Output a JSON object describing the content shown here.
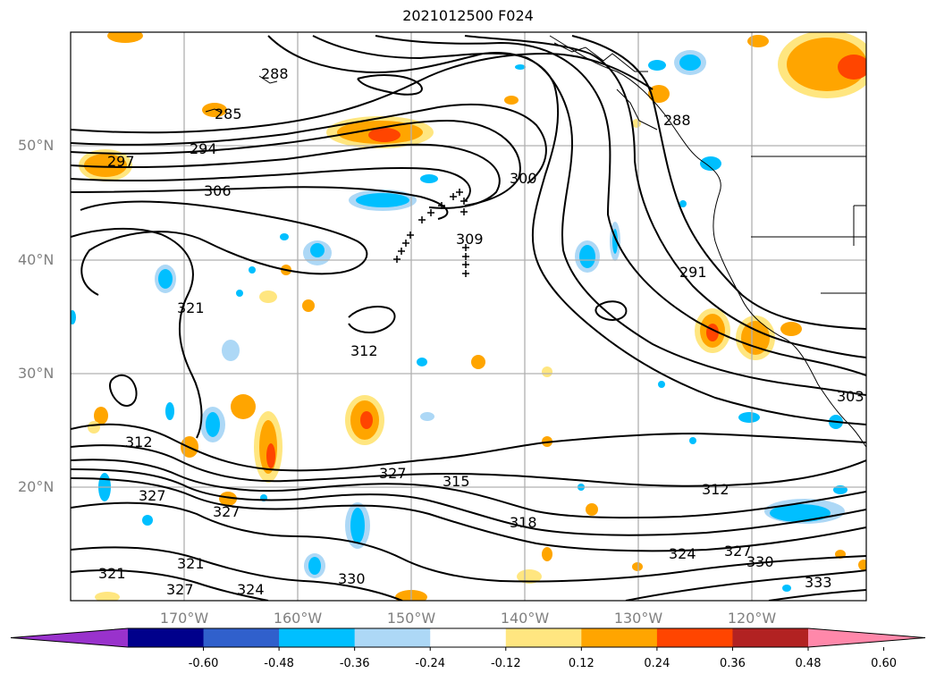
{
  "title": "2021012500 F024",
  "lat_labels": [
    "50°N",
    "40°N",
    "30°N",
    "20°N"
  ],
  "lon_labels": [
    "170°W",
    "160°W",
    "150°W",
    "140°W",
    "130°W",
    "120°W"
  ],
  "contour_labels": [
    "294",
    "297",
    "285",
    "288",
    "288",
    "306",
    "300",
    "309",
    "291",
    "321",
    "312",
    "312",
    "303",
    "327",
    "327",
    "327",
    "315",
    "318",
    "312",
    "324",
    "327",
    "330",
    "321",
    "321",
    "327",
    "324",
    "330",
    "333"
  ],
  "colorbar": {
    "ticks": [
      "-0.60",
      "-0.48",
      "-0.36",
      "-0.24",
      "-0.12",
      "0.12",
      "0.24",
      "0.36",
      "0.48",
      "0.60"
    ],
    "colors": [
      "#9932cc",
      "#00008b",
      "#3060cc",
      "#00bfff",
      "#add8f6",
      "#ffffff",
      "#ffe680",
      "#ffa500",
      "#ff4500",
      "#b22222",
      "#ff88aa"
    ]
  }
}
